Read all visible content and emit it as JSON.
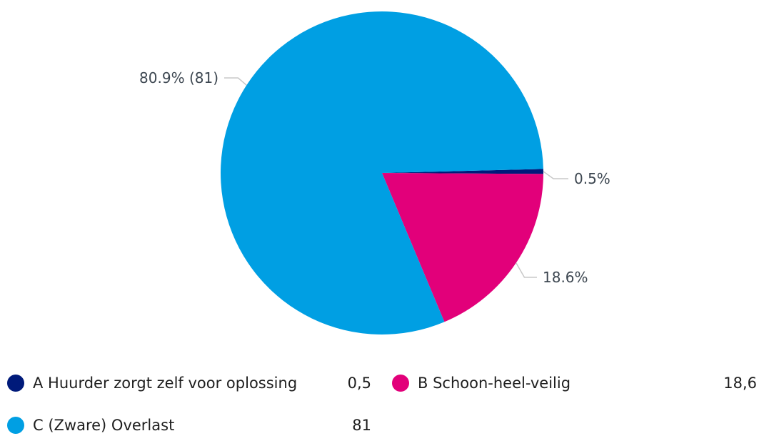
{
  "chart_data": {
    "type": "pie",
    "categories": [
      "A Huurder zorgt zelf voor oplossing",
      "B Schoon-heel-veilig",
      "C (Zware) Overlast"
    ],
    "values": [
      0.5,
      18.6,
      81
    ],
    "series": [
      {
        "values": [
          0.5,
          18.6,
          81
        ],
        "colors": [
          "#001a7a",
          "#e2007a",
          "#009fe3"
        ]
      }
    ],
    "slice_labels": [
      "0.5%",
      "18.6%",
      "80.9% (81)"
    ],
    "legend": {
      "placement": "bottom",
      "items": [
        {
          "label": "A Huurder zorgt zelf voor oplossing",
          "value": "0,5",
          "color": "#001a7a"
        },
        {
          "label": "B Schoon-heel-veilig",
          "value": "18,6",
          "color": "#e2007a"
        },
        {
          "label": "C (Zware) Overlast",
          "value": "81",
          "color": "#009fe3"
        }
      ]
    }
  }
}
